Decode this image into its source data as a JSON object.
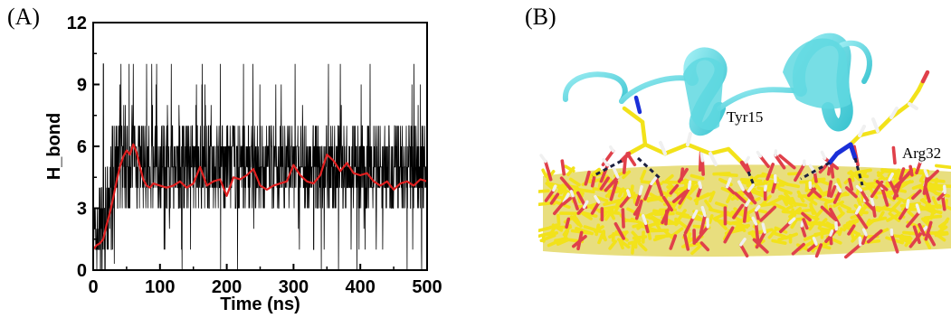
{
  "panels": {
    "a_label": "(A)",
    "b_label": "(B)"
  },
  "chart_data": {
    "type": "line",
    "title": "",
    "xlabel": "Time (ns)",
    "ylabel": "H_bond",
    "xlim": [
      0,
      500
    ],
    "ylim": [
      0,
      12
    ],
    "xticks": [
      "0",
      "100",
      "200",
      "300",
      "400",
      "500"
    ],
    "yticks": [
      "0",
      "3",
      "6",
      "9",
      "12"
    ],
    "grid": false,
    "series": [
      {
        "kind": "raw",
        "color": "#000000",
        "x": [
          0,
          10,
          20,
          30,
          40,
          50,
          60,
          80,
          100,
          150,
          200,
          250,
          300,
          350,
          400,
          450,
          500
        ],
        "y": [
          1,
          2,
          2,
          4,
          5,
          6,
          6,
          4,
          4,
          4.5,
          4,
          4.5,
          5,
          5,
          4.5,
          4.5,
          4.5
        ],
        "band_low": [
          0,
          0,
          0,
          1,
          3,
          3,
          3,
          3,
          3,
          3,
          3,
          3,
          3,
          3,
          3,
          3,
          3
        ],
        "band_high": [
          3,
          4,
          5,
          7,
          8,
          8,
          8,
          7,
          7,
          7,
          7,
          7,
          7,
          7,
          7,
          7,
          7
        ],
        "spike_max": 10
      },
      {
        "kind": "running-average",
        "color": "#e02020",
        "x": [
          0,
          5,
          10,
          15,
          20,
          25,
          30,
          35,
          40,
          45,
          50,
          55,
          60,
          65,
          70,
          75,
          80,
          85,
          90,
          100,
          110,
          120,
          130,
          140,
          150,
          160,
          170,
          180,
          190,
          200,
          210,
          220,
          230,
          240,
          250,
          260,
          270,
          280,
          290,
          300,
          310,
          320,
          330,
          340,
          350,
          360,
          370,
          380,
          390,
          400,
          410,
          420,
          430,
          440,
          450,
          460,
          470,
          480,
          490,
          500
        ],
        "y": [
          1.0,
          1.2,
          1.3,
          1.5,
          2.2,
          2.8,
          3.5,
          4.3,
          5.0,
          5.5,
          5.8,
          5.6,
          6.1,
          5.7,
          5.0,
          4.4,
          4.1,
          4.0,
          4.2,
          4.1,
          4.0,
          4.1,
          4.3,
          4.0,
          4.2,
          5.0,
          4.1,
          4.3,
          4.4,
          3.6,
          4.5,
          4.4,
          4.6,
          4.9,
          4.1,
          3.9,
          4.1,
          4.2,
          4.3,
          5.1,
          4.6,
          4.3,
          4.2,
          4.6,
          5.6,
          5.3,
          4.8,
          5.2,
          4.7,
          4.6,
          4.7,
          4.3,
          4.1,
          4.3,
          3.9,
          4.2,
          4.3,
          4.1,
          4.4,
          4.3
        ]
      }
    ]
  },
  "molecule": {
    "tyr_label": "Tyr15",
    "arg_label": "Arg32",
    "colors": {
      "ribbon": "#5fd8e0",
      "carbon": "#f2e21a",
      "oxygen": "#e0404a",
      "nitrogen": "#1a2fd8",
      "hydrogen": "#f0f0f0",
      "hbond": "#1c2040"
    }
  }
}
